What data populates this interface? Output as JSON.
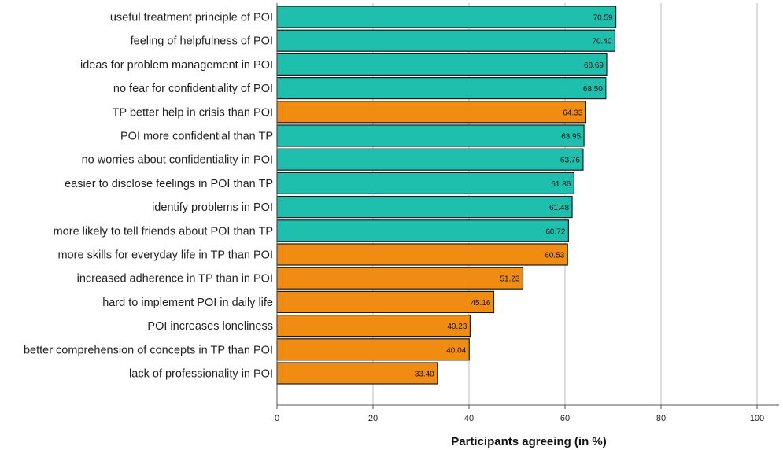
{
  "chart_data": {
    "type": "bar",
    "orientation": "horizontal",
    "title": "",
    "xlabel": "Participants agreeing (in %)",
    "ylabel": "",
    "xlim": [
      0,
      100
    ],
    "xticks": [
      0,
      20,
      40,
      60,
      80,
      100
    ],
    "grid": "vertical",
    "categories": [
      "useful treatment principle of POI",
      "feeling of helpfulness of POI",
      "ideas for problem management in POI",
      "no fear for confidentiality of POI",
      "TP better help in crisis than POI",
      "POI more confidential than TP",
      "no worries about confidentiality in POI",
      "easier to disclose feelings in POI than TP",
      "identify problems in POI",
      "more likely to tell friends about POI than TP",
      "more skills for everyday life in TP than POI",
      "increased adherence in TP than in POI",
      "hard to implement POI in daily life",
      "POI increases loneliness",
      "better comprehension of concepts in TP than POI",
      "lack of professionality in POI"
    ],
    "values": [
      70.59,
      70.4,
      68.69,
      68.5,
      64.33,
      63.95,
      63.76,
      61.86,
      61.48,
      60.72,
      60.53,
      51.23,
      45.16,
      40.23,
      40.04,
      33.4
    ],
    "value_labels": [
      "70.59",
      "70.40",
      "68.69",
      "68.50",
      "64.33",
      "63.95",
      "63.76",
      "61.86",
      "61.48",
      "60.72",
      "60.53",
      "51.23",
      "45.16",
      "40.23",
      "40.04",
      "33.40"
    ],
    "bar_groups": [
      "pro-POI",
      "pro-POI",
      "pro-POI",
      "pro-POI",
      "pro-TP",
      "pro-POI",
      "pro-POI",
      "pro-POI",
      "pro-POI",
      "pro-POI",
      "pro-TP",
      "pro-TP",
      "pro-TP",
      "pro-TP",
      "pro-TP",
      "pro-TP"
    ]
  },
  "colors": {
    "pro-POI": "#1fbfae",
    "pro-TP": "#f08c12",
    "bar_stroke": "#1a1a1a",
    "grid": "#bdbdbd",
    "axis": "#555555"
  }
}
